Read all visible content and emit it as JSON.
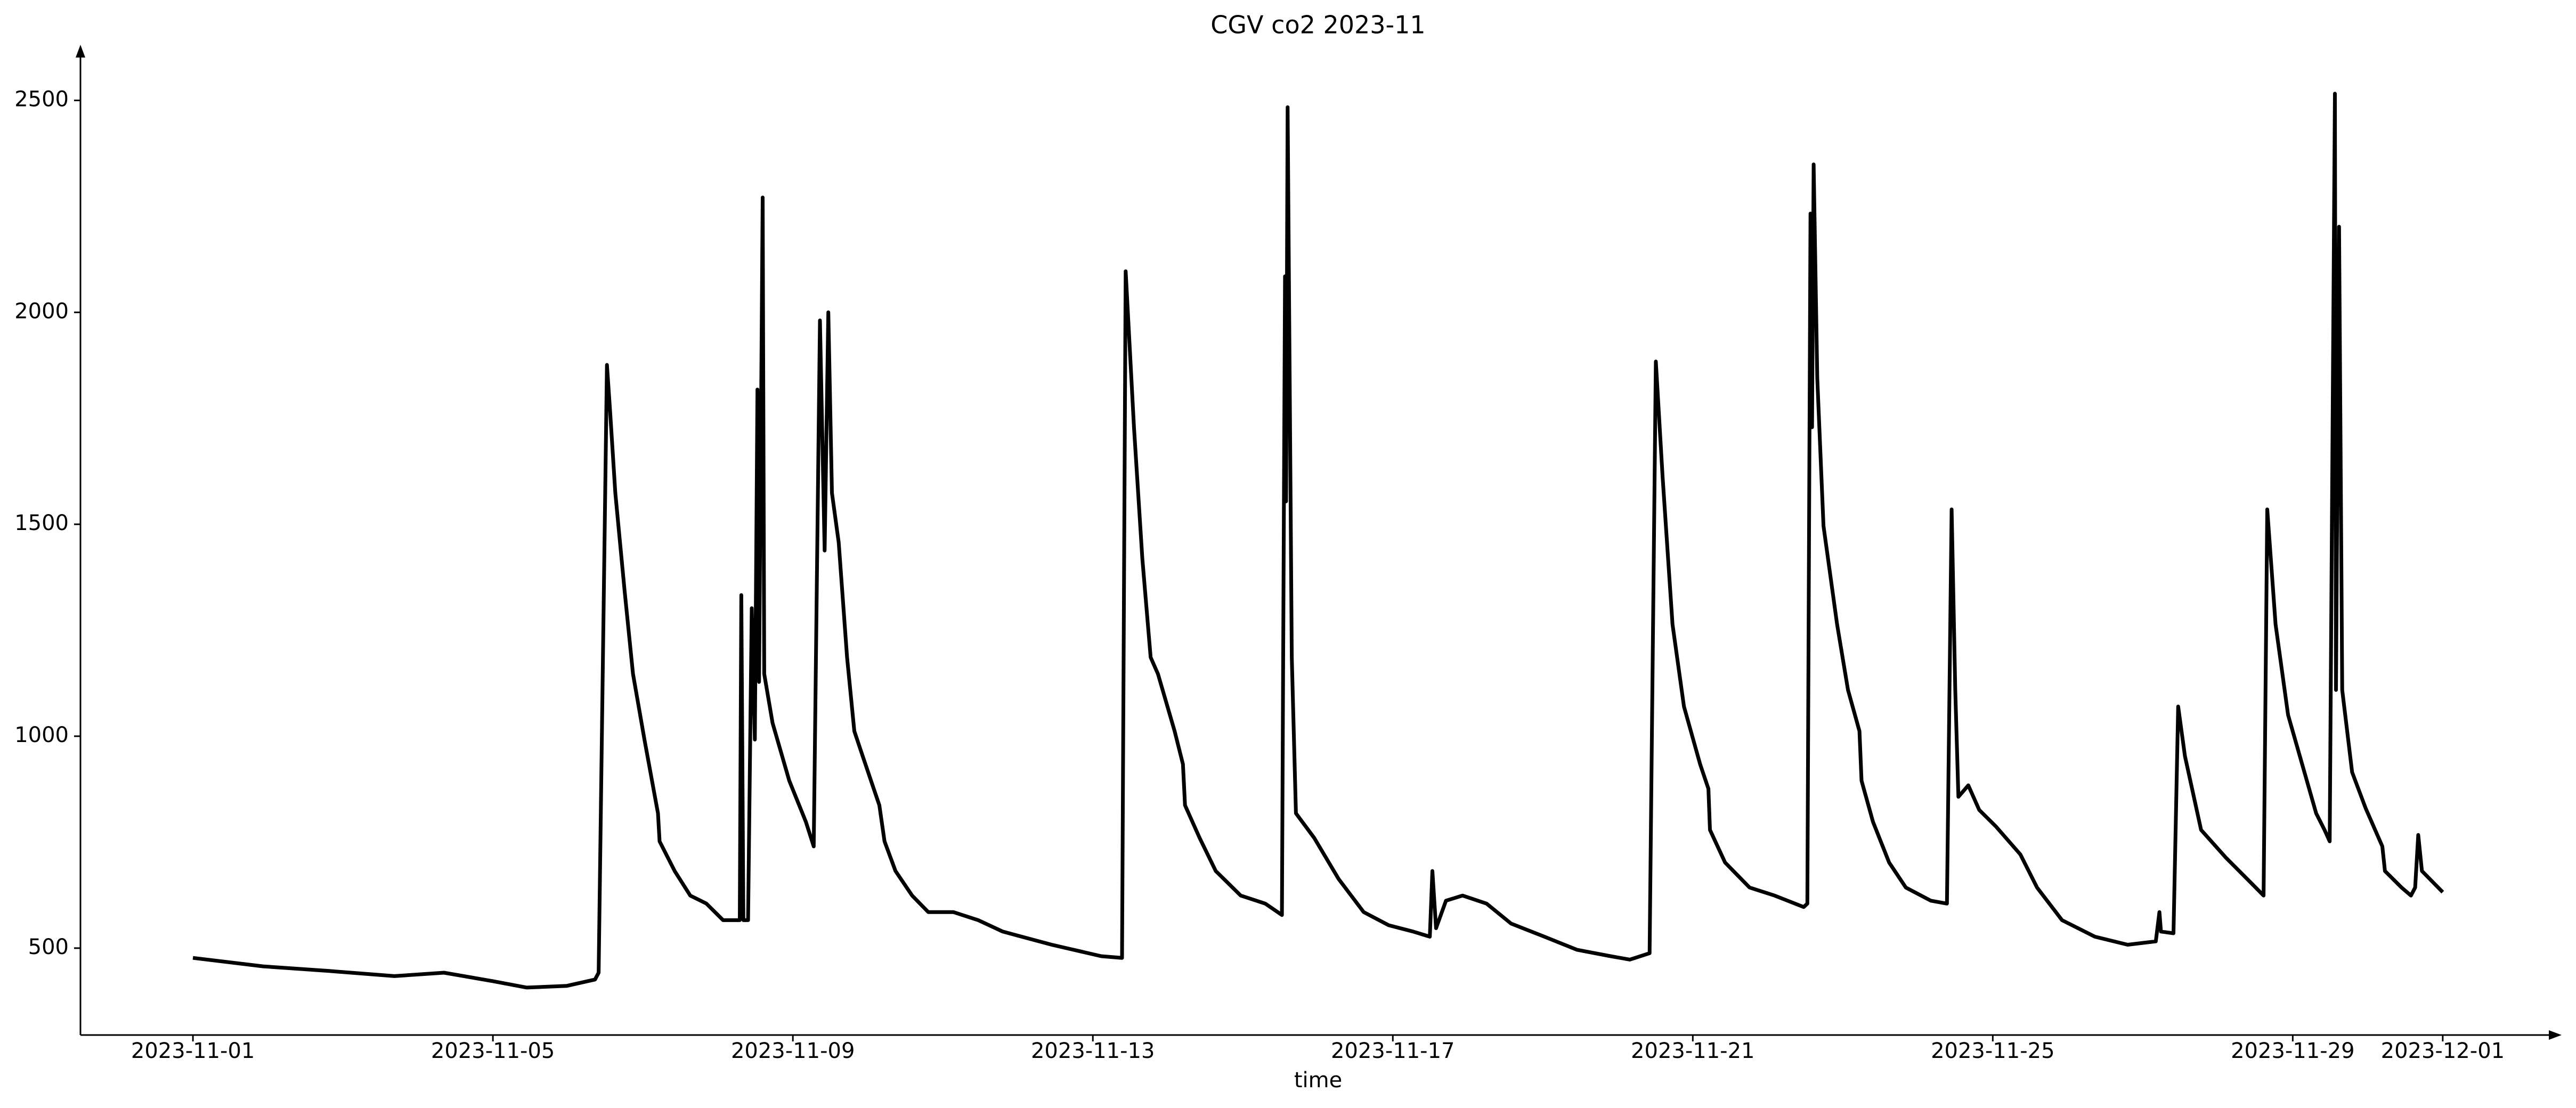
{
  "chart_data": {
    "type": "line",
    "title": "CGV co2 2023-11",
    "x_label": "time",
    "color": "#000000",
    "xlim": [
      "2023-10-30 12:00",
      "2023-12-02 12:00"
    ],
    "xticks": [
      "2023-11-01",
      "2023-11-05",
      "2023-11-09",
      "2023-11-13",
      "2023-11-17",
      "2023-11-21",
      "2023-11-25",
      "2023-11-29",
      "2023-12-01"
    ],
    "ylim": [
      295,
      2620
    ],
    "yticks": [
      500,
      1000,
      1500,
      2000,
      2500
    ],
    "grid": false,
    "x": [
      "2023-11-01 00:00",
      "2023-11-01 22:30",
      "2023-11-02 19:40",
      "2023-11-03 16:30",
      "2023-11-04 08:20",
      "2023-11-05 00:00",
      "2023-11-05 10:50",
      "2023-11-05 23:40",
      "2023-11-06 08:40",
      "2023-11-06 09:50",
      "2023-11-06 12:30",
      "2023-11-06 13:30",
      "2023-11-06 15:10",
      "2023-11-06 18:10",
      "2023-11-06 20:50",
      "2023-11-07 00:30",
      "2023-11-07 04:50",
      "2023-11-07 05:20",
      "2023-11-07 10:10",
      "2023-11-07 15:10",
      "2023-11-07 20:20",
      "2023-11-08 01:40",
      "2023-11-08 07:00",
      "2023-11-08 07:30",
      "2023-11-08 08:10",
      "2023-11-08 09:40",
      "2023-11-08 10:50",
      "2023-11-08 11:50",
      "2023-11-08 12:40",
      "2023-11-08 13:10",
      "2023-11-08 14:20",
      "2023-11-08 14:50",
      "2023-11-08 17:30",
      "2023-11-08 22:50",
      "2023-11-09 04:10",
      "2023-11-09 06:40",
      "2023-11-09 08:40",
      "2023-11-09 10:10",
      "2023-11-09 11:20",
      "2023-11-09 12:30",
      "2023-11-09 14:40",
      "2023-11-09 17:20",
      "2023-11-09 19:40",
      "2023-11-09 22:20",
      "2023-11-10 03:40",
      "2023-11-10 05:20",
      "2023-11-10 08:50",
      "2023-11-10 14:10",
      "2023-11-10 19:20",
      "2023-11-11 03:20",
      "2023-11-11 11:20",
      "2023-11-11 19:10",
      "2023-11-12 10:50",
      "2023-11-13 02:40",
      "2023-11-13 09:20",
      "2023-11-13 10:30",
      "2023-11-13 13:10",
      "2023-11-13 15:50",
      "2023-11-13 18:30",
      "2023-11-13 20:50",
      "2023-11-14 02:10",
      "2023-11-14 04:50",
      "2023-11-14 05:30",
      "2023-11-14 10:10",
      "2023-11-14 15:20",
      "2023-11-14 23:20",
      "2023-11-15 07:10",
      "2023-11-15 12:30",
      "2023-11-15 13:30",
      "2023-11-15 13:50",
      "2023-11-15 14:20",
      "2023-11-15 15:40",
      "2023-11-15 17:00",
      "2023-11-15 22:50",
      "2023-11-16 06:40",
      "2023-11-16 14:40",
      "2023-11-16 22:40",
      "2023-11-17 06:30",
      "2023-11-17 11:50",
      "2023-11-17 12:40",
      "2023-11-17 13:50",
      "2023-11-17 17:00",
      "2023-11-17 22:20",
      "2023-11-18 06:00",
      "2023-11-18 13:50",
      "2023-11-19 00:30",
      "2023-11-19 11:00",
      "2023-11-19 21:40",
      "2023-11-20 03:50",
      "2023-11-20 10:10",
      "2023-11-20 12:10",
      "2023-11-20 14:20",
      "2023-11-20 17:30",
      "2023-11-20 21:10",
      "2023-11-21 02:20",
      "2023-11-21 05:00",
      "2023-11-21 05:30",
      "2023-11-21 10:20",
      "2023-11-21 18:10",
      "2023-11-22 02:10",
      "2023-11-22 11:30",
      "2023-11-22 12:40",
      "2023-11-22 13:40",
      "2023-11-22 14:10",
      "2023-11-22 14:40",
      "2023-11-22 15:50",
      "2023-11-22 17:50",
      "2023-11-22 22:10",
      "2023-11-23 01:40",
      "2023-11-23 05:20",
      "2023-11-23 06:00",
      "2023-11-23 09:40",
      "2023-11-23 14:50",
      "2023-11-23 20:10",
      "2023-11-24 04:10",
      "2023-11-24 09:20",
      "2023-11-24 10:50",
      "2023-11-24 12:00",
      "2023-11-24 13:00",
      "2023-11-24 16:10",
      "2023-11-24 19:40",
      "2023-11-25 01:00",
      "2023-11-25 08:50",
      "2023-11-25 14:10",
      "2023-11-25 22:10",
      "2023-11-26 08:40",
      "2023-11-26 19:10",
      "2023-11-27 04:10",
      "2023-11-27 05:20",
      "2023-11-27 05:50",
      "2023-11-27 09:50",
      "2023-11-27 11:20",
      "2023-11-27 13:30",
      "2023-11-27 18:40",
      "2023-11-28 02:40",
      "2023-11-28 10:30",
      "2023-11-28 14:40",
      "2023-11-28 15:50",
      "2023-11-28 18:30",
      "2023-11-28 22:30",
      "2023-11-29 07:30",
      "2023-11-29 10:10",
      "2023-11-29 11:50",
      "2023-11-29 13:30",
      "2023-11-29 13:50",
      "2023-11-29 14:50",
      "2023-11-29 15:50",
      "2023-11-29 19:00",
      "2023-11-29 23:20",
      "2023-11-30 04:40",
      "2023-11-30 05:30",
      "2023-11-30 10:50",
      "2023-11-30 13:50",
      "2023-11-30 15:10",
      "2023-11-30 16:10",
      "2023-11-30 17:20",
      "2023-12-01 00:00"
    ],
    "values": [
      477,
      457,
      446,
      434,
      442,
      422,
      407,
      411,
      426,
      442,
      1876,
      1767,
      1574,
      1341,
      1147,
      992,
      818,
      752,
      682,
      624,
      605,
      566,
      566,
      1333,
      566,
      566,
      1302,
      992,
      1818,
      1128,
      2271,
      1147,
      1031,
      895,
      798,
      740,
      1981,
      1438,
      2000,
      1574,
      1457,
      1186,
      1012,
      953,
      837,
      752,
      682,
      624,
      585,
      585,
      566,
      539,
      508,
      481,
      477,
      2097,
      1729,
      1419,
      1186,
      1147,
      1012,
      934,
      837,
      760,
      682,
      624,
      605,
      578,
      2085,
      1554,
      2484,
      1186,
      818,
      760,
      663,
      585,
      554,
      539,
      527,
      682,
      547,
      612,
      624,
      605,
      558,
      527,
      496,
      481,
      473,
      488,
      1884,
      1612,
      1264,
      1070,
      934,
      876,
      779,
      702,
      643,
      624,
      597,
      605,
      2233,
      1729,
      2349,
      1845,
      1496,
      1264,
      1109,
      1012,
      895,
      798,
      702,
      643,
      612,
      605,
      1535,
      1109,
      857,
      884,
      826,
      787,
      721,
      643,
      566,
      527,
      508,
      516,
      585,
      539,
      535,
      1070,
      953,
      779,
      713,
      655,
      624,
      1535,
      1264,
      1050,
      818,
      779,
      752,
      2516,
      1109,
      2202,
      1109,
      915,
      830,
      740,
      682,
      643,
      624,
      643,
      767,
      682,
      632
    ]
  }
}
